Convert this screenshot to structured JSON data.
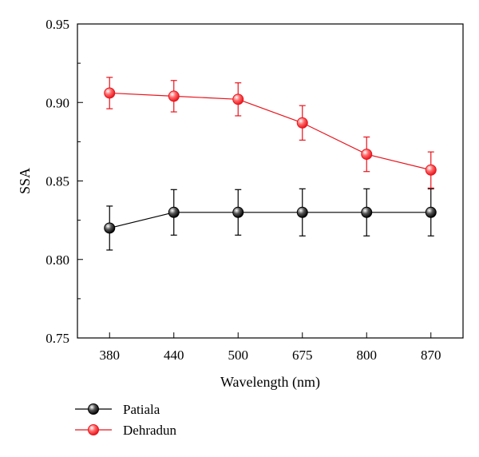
{
  "chart_data": {
    "type": "line",
    "title": "",
    "xlabel": "Wavelength (nm)",
    "ylabel": "SSA",
    "categories": [
      "380",
      "440",
      "500",
      "675",
      "800",
      "870"
    ],
    "ylim": [
      0.75,
      0.95
    ],
    "yticks": [
      "0.75",
      "0.80",
      "0.85",
      "0.90",
      "0.95"
    ],
    "grid": false,
    "legend_position": "bottom-left",
    "series": [
      {
        "name": "Patiala",
        "color": "#000000",
        "values": [
          0.82,
          0.83,
          0.83,
          0.83,
          0.83,
          0.83
        ],
        "error": [
          0.014,
          0.0145,
          0.0145,
          0.015,
          0.015,
          0.015
        ]
      },
      {
        "name": "Dehradun",
        "color": "#e8141c",
        "values": [
          0.906,
          0.904,
          0.902,
          0.887,
          0.867,
          0.857
        ],
        "error": [
          0.01,
          0.01,
          0.0105,
          0.011,
          0.011,
          0.0115
        ]
      }
    ]
  }
}
